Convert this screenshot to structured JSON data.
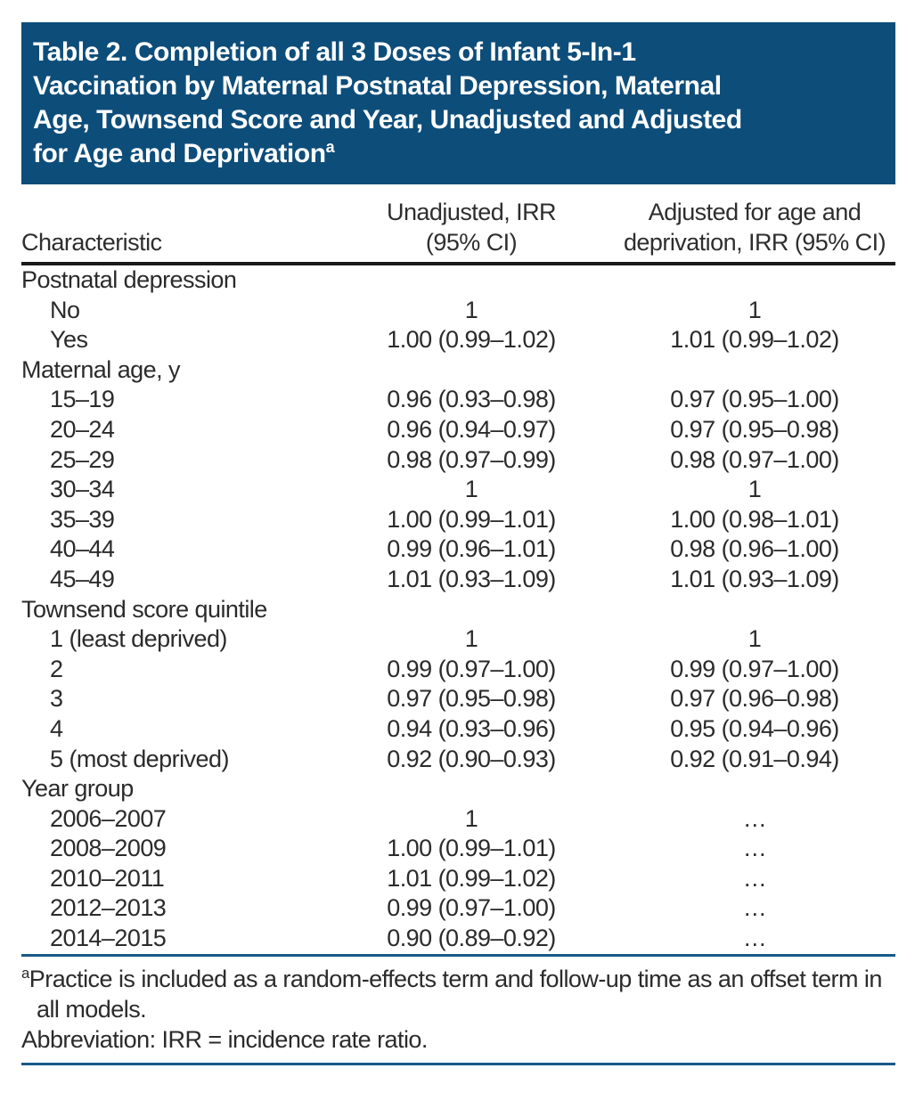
{
  "title": {
    "lines": [
      "Table 2. Completion of all 3 Doses of Infant 5-In-1",
      "Vaccination by Maternal Postnatal Depression, Maternal",
      "Age, Townsend Score and Year, Unadjusted and Adjusted",
      "for Age and Deprivation"
    ],
    "superscript": "a"
  },
  "table": {
    "header": {
      "characteristic": "Characteristic",
      "unadjusted_line1": "Unadjusted, IRR",
      "unadjusted_line2": "(95% CI)",
      "adjusted_line1": "Adjusted for age and",
      "adjusted_line2": "deprivation, IRR (95% CI)"
    },
    "rows": [
      {
        "type": "group",
        "label": "Postnatal depression",
        "unadjusted": "",
        "adjusted": ""
      },
      {
        "type": "data",
        "label": "No",
        "unadjusted": "1",
        "adjusted": "1"
      },
      {
        "type": "data",
        "label": "Yes",
        "unadjusted": "1.00 (0.99–1.02)",
        "adjusted": "1.01 (0.99–1.02)"
      },
      {
        "type": "group",
        "label": "Maternal age, y",
        "unadjusted": "",
        "adjusted": ""
      },
      {
        "type": "data",
        "label": "15–19",
        "unadjusted": "0.96 (0.93–0.98)",
        "adjusted": "0.97 (0.95–1.00)"
      },
      {
        "type": "data",
        "label": "20–24",
        "unadjusted": "0.96 (0.94–0.97)",
        "adjusted": "0.97 (0.95–0.98)"
      },
      {
        "type": "data",
        "label": "25–29",
        "unadjusted": "0.98 (0.97–0.99)",
        "adjusted": "0.98 (0.97–1.00)"
      },
      {
        "type": "data",
        "label": "30–34",
        "unadjusted": "1",
        "adjusted": "1"
      },
      {
        "type": "data",
        "label": "35–39",
        "unadjusted": "1.00 (0.99–1.01)",
        "adjusted": "1.00 (0.98–1.01)"
      },
      {
        "type": "data",
        "label": "40–44",
        "unadjusted": "0.99 (0.96–1.01)",
        "adjusted": "0.98 (0.96–1.00)"
      },
      {
        "type": "data",
        "label": "45–49",
        "unadjusted": "1.01 (0.93–1.09)",
        "adjusted": "1.01 (0.93–1.09)"
      },
      {
        "type": "group",
        "label": "Townsend score quintile",
        "unadjusted": "",
        "adjusted": ""
      },
      {
        "type": "data",
        "label": "1 (least deprived)",
        "unadjusted": "1",
        "adjusted": "1"
      },
      {
        "type": "data",
        "label": "2",
        "unadjusted": "0.99 (0.97–1.00)",
        "adjusted": "0.99 (0.97–1.00)"
      },
      {
        "type": "data",
        "label": "3",
        "unadjusted": "0.97 (0.95–0.98)",
        "adjusted": "0.97 (0.96–0.98)"
      },
      {
        "type": "data",
        "label": "4",
        "unadjusted": "0.94 (0.93–0.96)",
        "adjusted": "0.95 (0.94–0.96)"
      },
      {
        "type": "data",
        "label": "5 (most deprived)",
        "unadjusted": "0.92 (0.90–0.93)",
        "adjusted": "0.92 (0.91–0.94)"
      },
      {
        "type": "group",
        "label": "Year group",
        "unadjusted": "",
        "adjusted": ""
      },
      {
        "type": "data",
        "label": "2006–2007",
        "unadjusted": "1",
        "adjusted": "…"
      },
      {
        "type": "data",
        "label": "2008–2009",
        "unadjusted": "1.00 (0.99–1.01)",
        "adjusted": "…"
      },
      {
        "type": "data",
        "label": "2010–2011",
        "unadjusted": "1.01 (0.99–1.02)",
        "adjusted": "…"
      },
      {
        "type": "data",
        "label": "2012–2013",
        "unadjusted": "0.99 (0.97–1.00)",
        "adjusted": "…"
      },
      {
        "type": "data",
        "label": "2014–2015",
        "unadjusted": "0.90 (0.89–0.92)",
        "adjusted": "…"
      }
    ]
  },
  "footnotes": {
    "a_marker": "a",
    "a_text": "Practice is included as a random-effects term and follow-up time as an offset term in all models.",
    "abbreviation": "Abbreviation: IRR = incidence rate ratio."
  },
  "colors": {
    "title_bg": "#0d4d7a",
    "title_text": "#ffffff",
    "rule_black": "#1a1a1a",
    "rule_blue": "#175a87",
    "text": "#2b2b2b"
  }
}
